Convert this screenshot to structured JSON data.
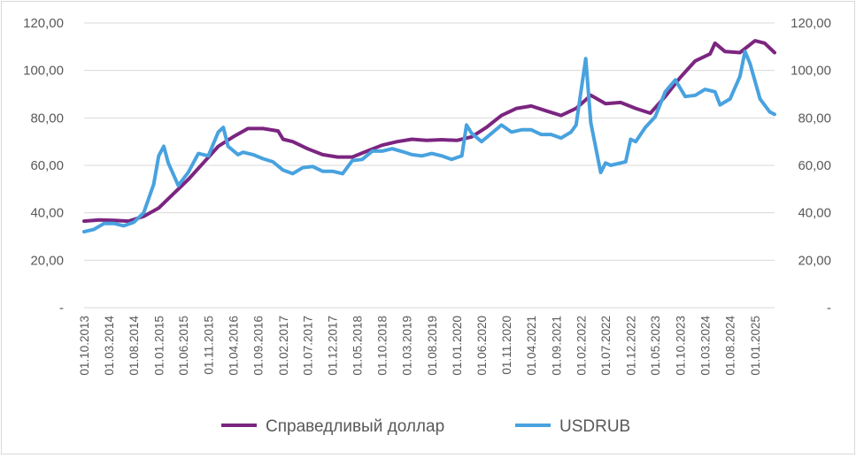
{
  "chart_data": {
    "type": "line",
    "title": "",
    "xlabel": "",
    "ylabel": "",
    "ylim": [
      0,
      120
    ],
    "y_ticks": [
      "-",
      "20,00",
      "40,00",
      "60,00",
      "80,00",
      "100,00",
      "120,00"
    ],
    "y_tick_values": [
      0,
      20,
      40,
      60,
      80,
      100,
      120
    ],
    "x_range": [
      "2013-10-01",
      "2025-05-01"
    ],
    "x_ticks": [
      "01.10.2013",
      "01.03.2014",
      "01.08.2014",
      "01.01.2015",
      "01.06.2015",
      "01.11.2015",
      "01.04.2016",
      "01.09.2016",
      "01.02.2017",
      "01.07.2017",
      "01.12.2017",
      "01.05.2018",
      "01.10.2018",
      "01.03.2019",
      "01.08.2019",
      "01.01.2020",
      "01.06.2020",
      "01.11.2020",
      "01.04.2021",
      "01.09.2021",
      "01.02.2022",
      "01.07.2022",
      "01.12.2022",
      "01.05.2023",
      "01.10.2023",
      "01.03.2024",
      "01.08.2024",
      "01.01.2025"
    ],
    "grid": true,
    "legend_position": "bottom",
    "series": [
      {
        "name": "Справедливый доллар",
        "color": "#7b2580",
        "points": [
          [
            "2013-10-01",
            36.5
          ],
          [
            "2014-01-01",
            37.0
          ],
          [
            "2014-04-01",
            36.8
          ],
          [
            "2014-07-01",
            36.5
          ],
          [
            "2014-10-01",
            38.5
          ],
          [
            "2015-01-01",
            42.0
          ],
          [
            "2015-04-01",
            48.0
          ],
          [
            "2015-07-01",
            54.0
          ],
          [
            "2015-10-01",
            61.0
          ],
          [
            "2016-01-01",
            68.0
          ],
          [
            "2016-04-01",
            72.0
          ],
          [
            "2016-07-01",
            75.5
          ],
          [
            "2016-10-01",
            75.5
          ],
          [
            "2017-01-01",
            74.5
          ],
          [
            "2017-02-01",
            71.0
          ],
          [
            "2017-04-01",
            70.0
          ],
          [
            "2017-07-01",
            67.0
          ],
          [
            "2017-10-01",
            64.5
          ],
          [
            "2018-01-01",
            63.5
          ],
          [
            "2018-04-01",
            63.5
          ],
          [
            "2018-07-01",
            66.0
          ],
          [
            "2018-10-01",
            68.5
          ],
          [
            "2019-01-01",
            70.0
          ],
          [
            "2019-04-01",
            71.0
          ],
          [
            "2019-07-01",
            70.5
          ],
          [
            "2019-10-01",
            70.8
          ],
          [
            "2020-01-01",
            70.5
          ],
          [
            "2020-04-01",
            72.0
          ],
          [
            "2020-07-01",
            76.0
          ],
          [
            "2020-10-01",
            81.0
          ],
          [
            "2021-01-01",
            84.0
          ],
          [
            "2021-04-01",
            85.0
          ],
          [
            "2021-07-01",
            83.0
          ],
          [
            "2021-10-01",
            81.0
          ],
          [
            "2022-01-01",
            84.0
          ],
          [
            "2022-04-01",
            89.5
          ],
          [
            "2022-07-01",
            86.0
          ],
          [
            "2022-10-01",
            86.5
          ],
          [
            "2023-01-01",
            84.0
          ],
          [
            "2023-04-01",
            82.0
          ],
          [
            "2023-07-01",
            89.0
          ],
          [
            "2023-10-01",
            97.0
          ],
          [
            "2024-01-01",
            104.0
          ],
          [
            "2024-04-01",
            107.0
          ],
          [
            "2024-05-01",
            111.5
          ],
          [
            "2024-07-01",
            108.0
          ],
          [
            "2024-10-01",
            107.5
          ],
          [
            "2025-01-01",
            112.5
          ],
          [
            "2025-03-01",
            111.5
          ],
          [
            "2025-05-01",
            107.5
          ]
        ]
      },
      {
        "name": "USDRUB",
        "color": "#48a2df",
        "points": [
          [
            "2013-10-01",
            32.0
          ],
          [
            "2013-12-01",
            33.0
          ],
          [
            "2014-02-01",
            35.5
          ],
          [
            "2014-04-01",
            35.5
          ],
          [
            "2014-06-01",
            34.5
          ],
          [
            "2014-08-01",
            36.0
          ],
          [
            "2014-10-01",
            40.0
          ],
          [
            "2014-12-01",
            52.0
          ],
          [
            "2015-01-01",
            64.0
          ],
          [
            "2015-02-01",
            68.0
          ],
          [
            "2015-03-01",
            61.0
          ],
          [
            "2015-05-01",
            51.5
          ],
          [
            "2015-07-01",
            57.0
          ],
          [
            "2015-09-01",
            65.0
          ],
          [
            "2015-11-01",
            64.0
          ],
          [
            "2016-01-01",
            74.0
          ],
          [
            "2016-02-01",
            76.0
          ],
          [
            "2016-03-01",
            68.0
          ],
          [
            "2016-05-01",
            64.5
          ],
          [
            "2016-06-01",
            65.5
          ],
          [
            "2016-08-01",
            64.5
          ],
          [
            "2016-10-01",
            62.8
          ],
          [
            "2016-12-01",
            61.5
          ],
          [
            "2017-02-01",
            58.0
          ],
          [
            "2017-04-01",
            56.5
          ],
          [
            "2017-06-01",
            59.0
          ],
          [
            "2017-08-01",
            59.5
          ],
          [
            "2017-10-01",
            57.5
          ],
          [
            "2017-12-01",
            57.5
          ],
          [
            "2018-02-01",
            56.5
          ],
          [
            "2018-04-01",
            62.0
          ],
          [
            "2018-06-01",
            62.5
          ],
          [
            "2018-08-01",
            66.0
          ],
          [
            "2018-10-01",
            66.0
          ],
          [
            "2018-12-01",
            67.0
          ],
          [
            "2019-02-01",
            65.8
          ],
          [
            "2019-04-01",
            64.5
          ],
          [
            "2019-06-01",
            64.0
          ],
          [
            "2019-08-01",
            65.0
          ],
          [
            "2019-10-01",
            64.0
          ],
          [
            "2019-12-01",
            62.5
          ],
          [
            "2020-02-01",
            64.0
          ],
          [
            "2020-03-01",
            77.0
          ],
          [
            "2020-04-01",
            73.5
          ],
          [
            "2020-06-01",
            70.0
          ],
          [
            "2020-08-01",
            73.5
          ],
          [
            "2020-10-01",
            77.0
          ],
          [
            "2020-12-01",
            74.0
          ],
          [
            "2021-02-01",
            75.0
          ],
          [
            "2021-04-01",
            75.0
          ],
          [
            "2021-06-01",
            73.0
          ],
          [
            "2021-08-01",
            73.0
          ],
          [
            "2021-10-01",
            71.5
          ],
          [
            "2021-12-01",
            74.0
          ],
          [
            "2022-01-01",
            77.0
          ],
          [
            "2022-03-01",
            105.0
          ],
          [
            "2022-04-01",
            78.0
          ],
          [
            "2022-06-01",
            57.0
          ],
          [
            "2022-07-01",
            61.0
          ],
          [
            "2022-08-01",
            60.0
          ],
          [
            "2022-10-01",
            61.0
          ],
          [
            "2022-11-01",
            61.5
          ],
          [
            "2022-12-01",
            71.0
          ],
          [
            "2023-01-01",
            70.0
          ],
          [
            "2023-03-01",
            76.0
          ],
          [
            "2023-05-01",
            80.5
          ],
          [
            "2023-07-01",
            91.0
          ],
          [
            "2023-09-01",
            96.0
          ],
          [
            "2023-11-01",
            89.0
          ],
          [
            "2024-01-01",
            89.5
          ],
          [
            "2024-03-01",
            92.0
          ],
          [
            "2024-05-01",
            91.0
          ],
          [
            "2024-06-01",
            85.5
          ],
          [
            "2024-08-01",
            88.0
          ],
          [
            "2024-10-01",
            97.5
          ],
          [
            "2024-11-01",
            108.0
          ],
          [
            "2024-12-01",
            103.0
          ],
          [
            "2025-02-01",
            88.0
          ],
          [
            "2025-04-01",
            82.5
          ],
          [
            "2025-05-01",
            81.5
          ]
        ]
      }
    ]
  }
}
